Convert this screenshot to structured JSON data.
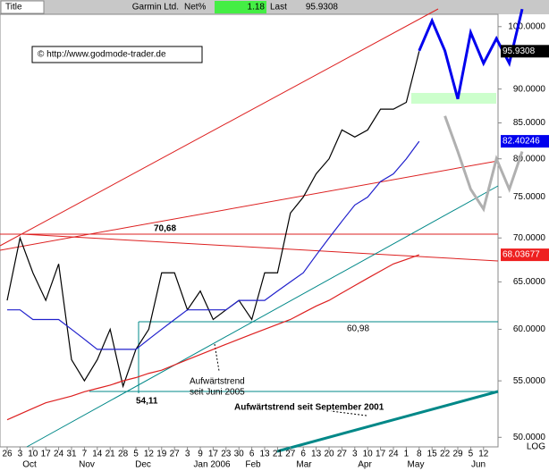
{
  "header": {
    "title_tab": "Title",
    "name": "Garmin Ltd.",
    "net_label": "Net%",
    "net_value": "1.18",
    "last_label": "Last",
    "last_value": "95.9308"
  },
  "chart_data": {
    "type": "line",
    "log_scale": true,
    "categories": [
      "26",
      "3",
      "10",
      "17",
      "24",
      "31",
      "7",
      "14",
      "21",
      "28",
      "5",
      "12",
      "19",
      "27",
      "3",
      "9",
      "17",
      "23",
      "30",
      "6",
      "13",
      "21",
      "27",
      "6",
      "13",
      "20",
      "27",
      "3",
      "10",
      "17",
      "24",
      "1",
      "8",
      "15",
      "22",
      "29",
      "5",
      "12",
      null,
      null,
      null
    ],
    "months": [
      "Oct",
      "Nov",
      "Dec",
      "Jan 2006",
      "Feb",
      "Mar",
      "Apr",
      "May",
      "Jun"
    ],
    "scale_label": "LOG",
    "ylim": [
      49.2,
      102.1
    ],
    "yticks": [
      {
        "value": 100,
        "label": "100.0000"
      },
      {
        "value": 90,
        "label": "90.0000"
      },
      {
        "value": 85,
        "label": "85.0000"
      },
      {
        "value": 80,
        "label": "80.0000"
      },
      {
        "value": 75,
        "label": "75.0000"
      },
      {
        "value": 70,
        "label": "70.0000"
      },
      {
        "value": 65,
        "label": "65.0000"
      },
      {
        "value": 60,
        "label": "60.0000"
      },
      {
        "value": 55,
        "label": "55.0000"
      },
      {
        "value": 50,
        "label": "50.0000"
      }
    ],
    "axis_boxes": [
      {
        "value": 95.9308,
        "label": "95.9308",
        "color": "#000000"
      },
      {
        "value": 82.40246,
        "label": "82.40246",
        "color": "#0000ee"
      },
      {
        "value": 68.03677,
        "label": "68.03677",
        "color": "#ee2020"
      }
    ],
    "series": [
      {
        "color": "#000000",
        "values": [
          63,
          70,
          66,
          63,
          67,
          57,
          55,
          57,
          60,
          54.5,
          58,
          60,
          66,
          66,
          62,
          64,
          61,
          62,
          63,
          61,
          66,
          66,
          73,
          75,
          78,
          80,
          84,
          83,
          84,
          87,
          87,
          88,
          95.9308,
          null,
          null,
          null,
          null,
          null,
          null,
          null,
          null
        ]
      },
      {
        "color": "#2020cc",
        "values": [
          62,
          62,
          61,
          61,
          61,
          60,
          59,
          58,
          58,
          58,
          58,
          59,
          60,
          61,
          62,
          62,
          62,
          62,
          63,
          63,
          63,
          64,
          65,
          66,
          68,
          70,
          72,
          74,
          75,
          77,
          78,
          80,
          82.40246,
          null,
          null,
          null,
          null,
          null,
          null,
          null,
          null
        ]
      },
      {
        "color": "#dd2020",
        "values": [
          51.5,
          52,
          52.5,
          53,
          53.3,
          53.6,
          54,
          54.3,
          54.6,
          55,
          55.3,
          55.7,
          56,
          56.5,
          57,
          57.5,
          58,
          58.5,
          59,
          59.5,
          60,
          60.5,
          61,
          61.7,
          62.4,
          63,
          63.8,
          64.6,
          65.4,
          66.2,
          67,
          67.5,
          68.03677,
          null,
          null,
          null,
          null,
          null,
          null,
          null,
          null
        ]
      },
      {
        "color": "#0000ee",
        "values": [
          null,
          null,
          null,
          null,
          null,
          null,
          null,
          null,
          null,
          null,
          null,
          null,
          null,
          null,
          null,
          null,
          null,
          null,
          null,
          null,
          null,
          null,
          null,
          null,
          null,
          null,
          null,
          null,
          null,
          null,
          null,
          null,
          96,
          101,
          96,
          88.5,
          99,
          94,
          98,
          94,
          103
        ]
      },
      {
        "color": "#b0b0b0",
        "values": [
          null,
          null,
          null,
          null,
          null,
          null,
          null,
          null,
          null,
          null,
          null,
          null,
          null,
          null,
          null,
          null,
          null,
          null,
          null,
          null,
          null,
          null,
          null,
          null,
          null,
          null,
          null,
          null,
          null,
          null,
          null,
          null,
          null,
          null,
          86,
          81,
          76,
          73.5,
          80,
          76,
          81
        ]
      }
    ],
    "annotations": [
      "70,68",
      "60,98",
      "54,11",
      "Aufwärtstrend",
      "seit Juni 2005",
      "Aufwärtstrend seit September 2001",
      "© http://www.godmode-trader.de"
    ]
  }
}
